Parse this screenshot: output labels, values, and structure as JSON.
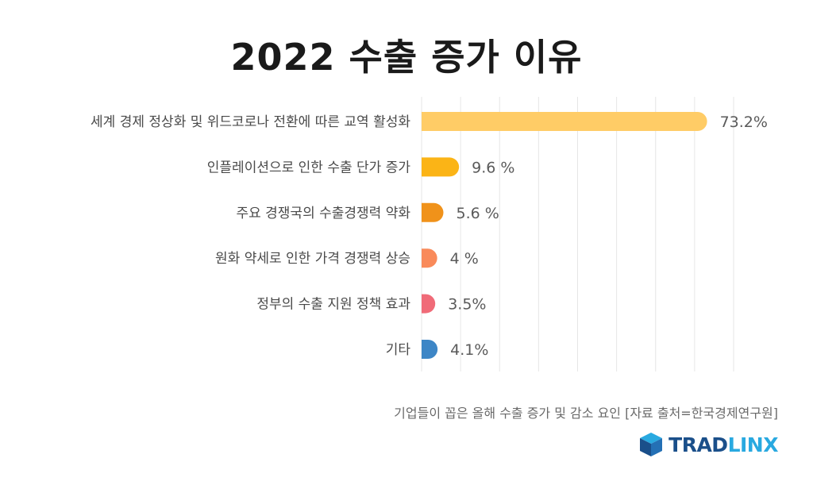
{
  "title": "2022 수출 증가 이유",
  "footer_note": "기업들이 꼽은 올해 수출 증가 및 감소 요인 [자료 출처=한국경제연구원]",
  "logo": {
    "part1": "TRAD",
    "part2": "LINX",
    "color1": "#1a4f8a",
    "color2": "#29a9e0",
    "icon": "cube-logo-icon"
  },
  "chart_data": {
    "type": "bar",
    "orientation": "horizontal",
    "title": "2022 수출 증가 이유",
    "categories": [
      "세계 경제 정상화 및 위드코로나 전환에 따른 교역 활성화",
      "인플레이션으로 인한 수출 단가 증가",
      "주요 경쟁국의 수출경쟁력 약화",
      "원화 약세로 인한 가격 경쟁력 상승",
      "정부의 수출 지원 정책 효과",
      "기타"
    ],
    "values": [
      73.2,
      9.6,
      5.6,
      4,
      3.5,
      4.1
    ],
    "value_labels": [
      "73.2%",
      "9.6 %",
      "5.6 %",
      "4 %",
      "3.5%",
      "4.1%"
    ],
    "colors": [
      "#ffcc66",
      "#fbb416",
      "#f0921a",
      "#f98a5a",
      "#f06b78",
      "#3d86c6"
    ],
    "xlim": [
      0,
      80
    ],
    "grid": true,
    "legend": "none"
  }
}
